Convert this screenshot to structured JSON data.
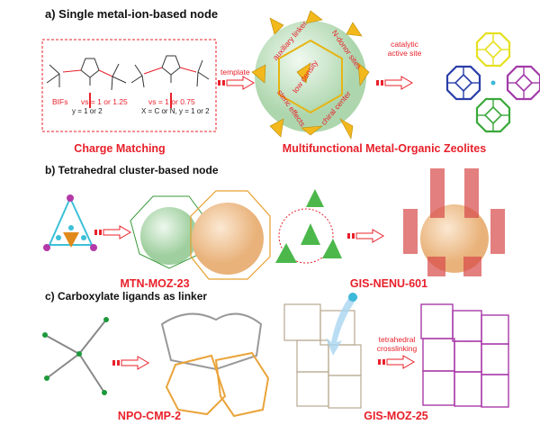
{
  "section_a": {
    "title": "a) Single metal-ion-based node",
    "bifs_label": "BIFs",
    "vs1": "vs = 1 or 1.25",
    "y1": "y = 1 or 2",
    "vs2": "vs = 1 or 0.75",
    "xy2": "X = C or N, y = 1 or 2",
    "template_label": "template",
    "catalytic_label": "catalytic active site",
    "cage_labels": [
      "auxiliary linker",
      "N-donor sites",
      "low density",
      "steric effects",
      "chiral center"
    ],
    "charge_matching": "Charge Matching",
    "moz_label": "Multifunctional Metal-Organic Zeolites",
    "cage_colors": [
      "#2a3ea8",
      "#e6e020",
      "#a23aa8",
      "#3aa83a"
    ]
  },
  "section_b": {
    "title": "b) Tetrahedral cluster-based node",
    "label_left": "MTN-MOZ-23",
    "label_right": "GIS-NENU-601"
  },
  "section_c": {
    "title": "c) Carboxylate ligands as linker",
    "crosslink_label": "tetrahedral crosslinking",
    "label_left": "NPO-CMP-2",
    "label_right": "GIS-MOZ-25"
  },
  "colors": {
    "accent_red": "#e8202a",
    "gold": "#f2b81c",
    "sphere_green": "#bfe3c0",
    "sphere_orange": "#f3c995"
  }
}
